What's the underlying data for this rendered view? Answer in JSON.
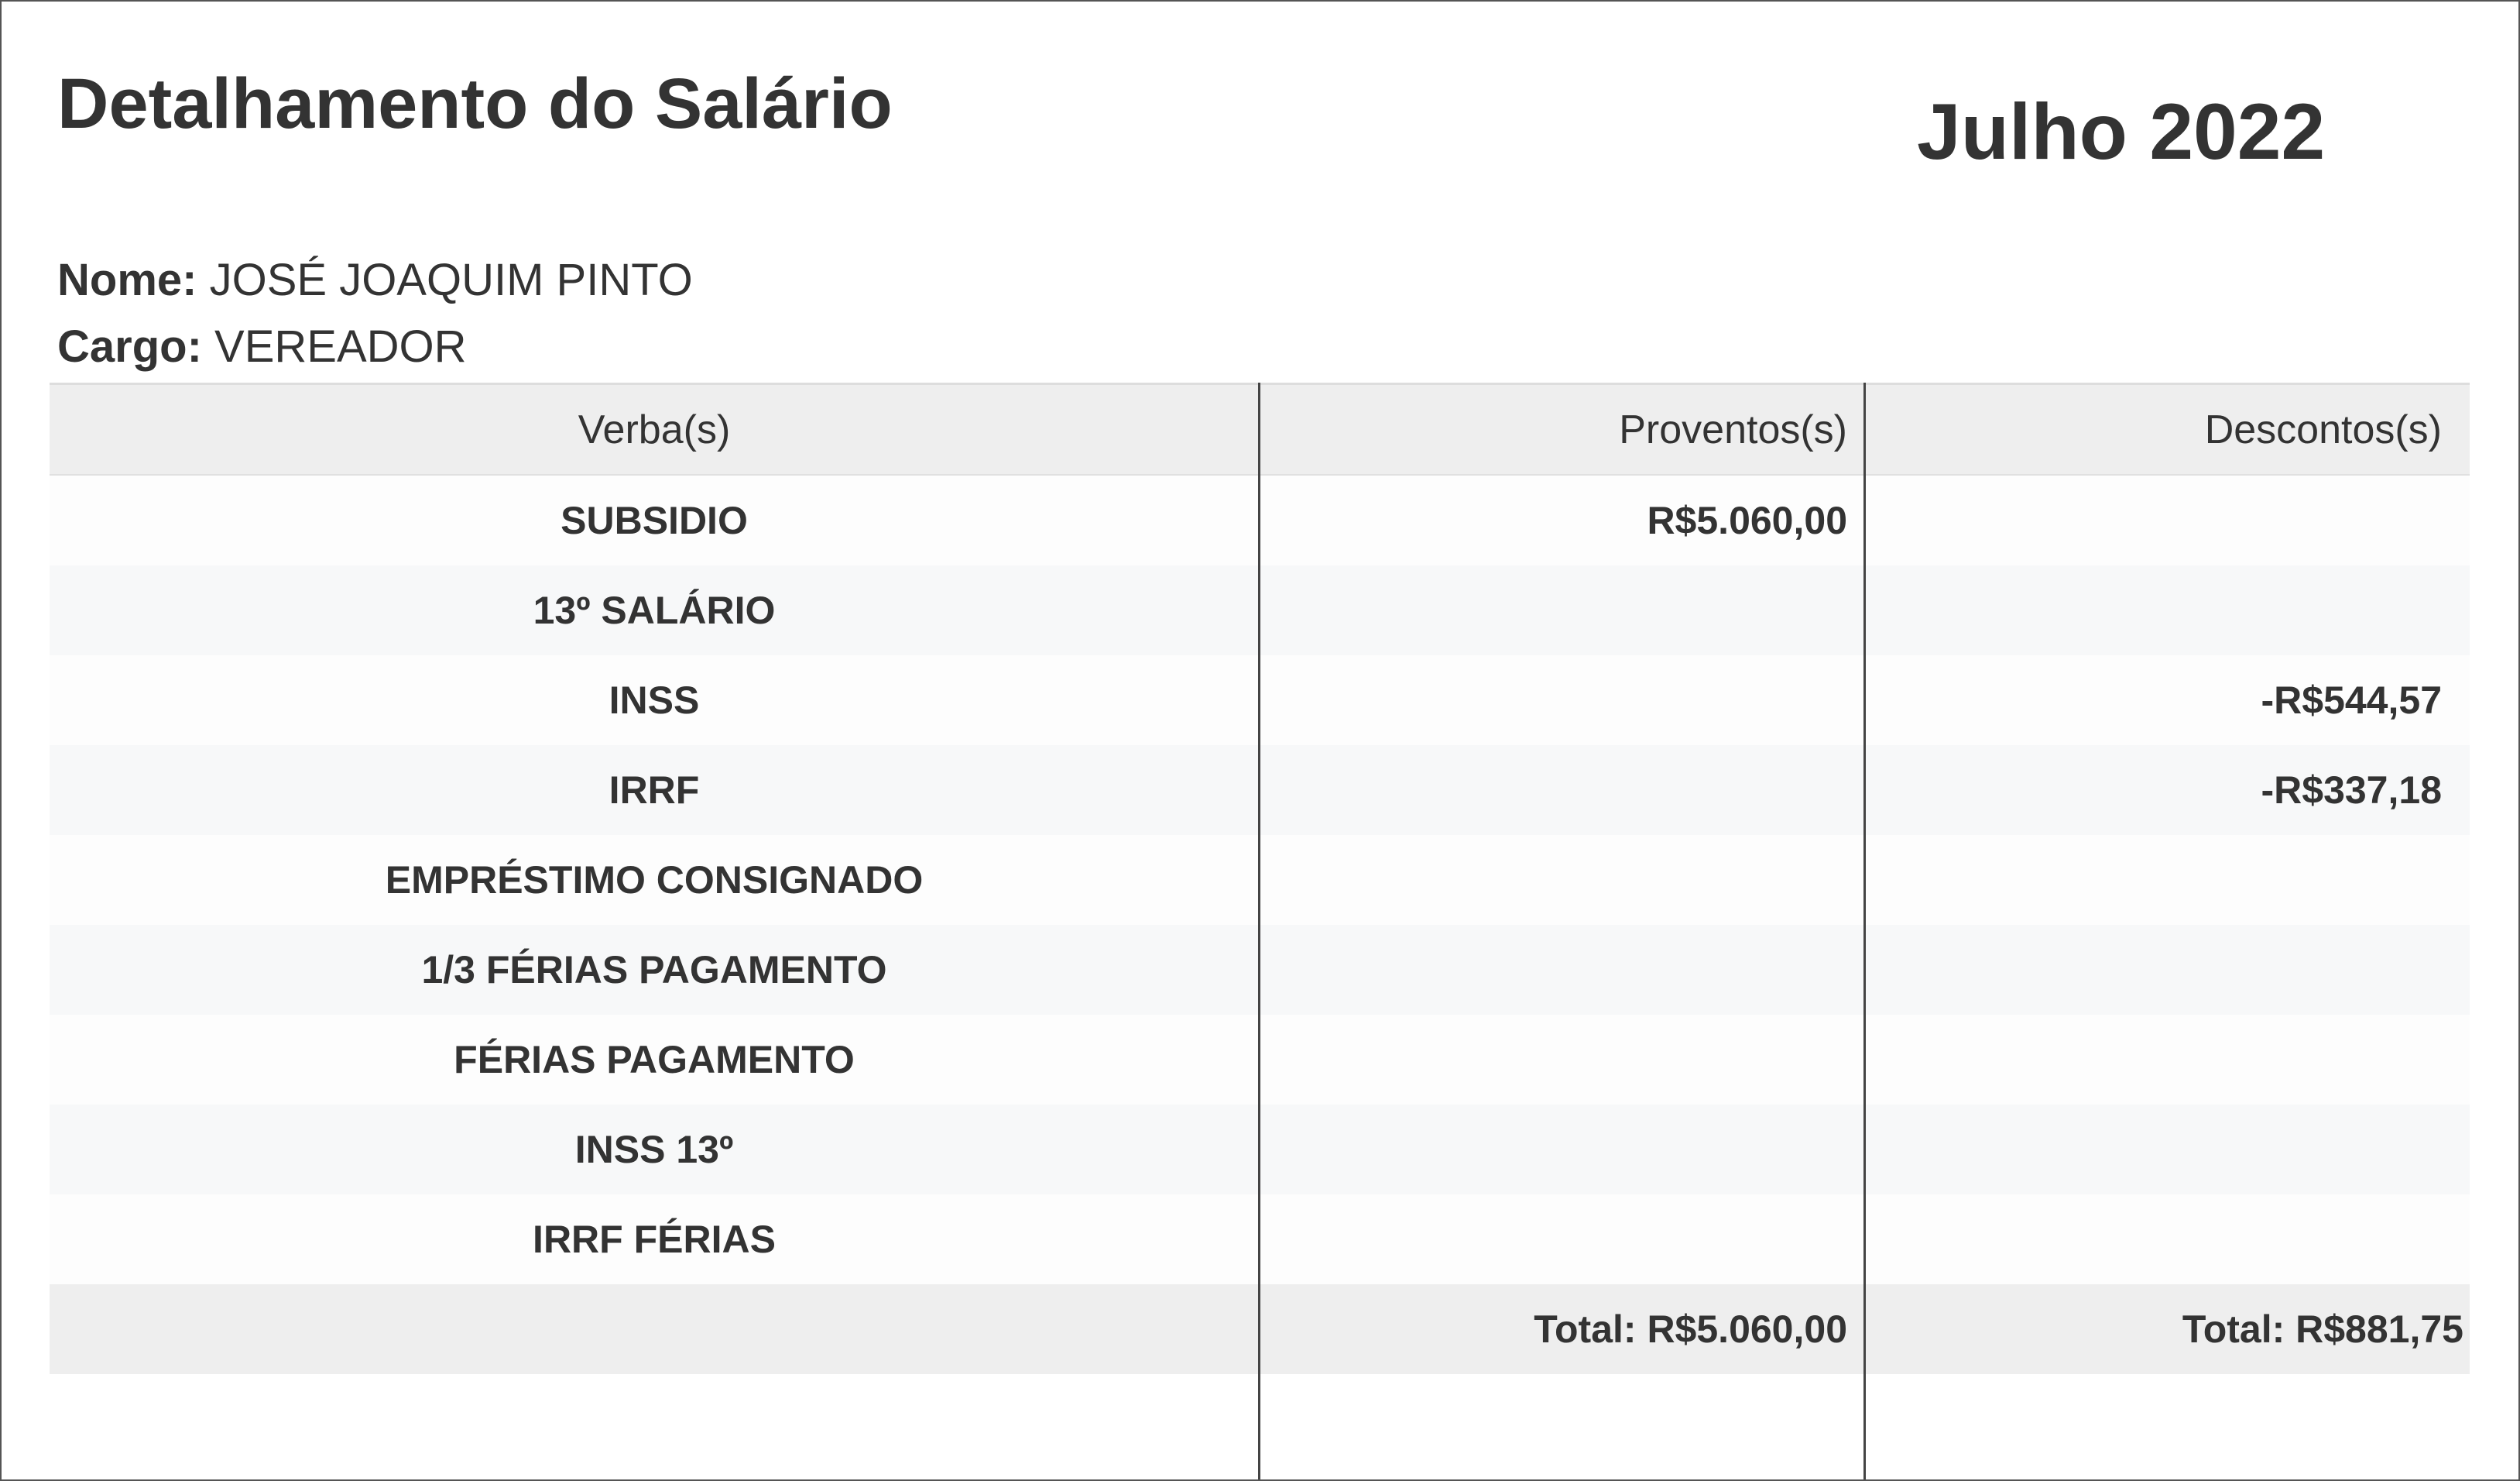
{
  "header": {
    "title": "Detalhamento do Salário",
    "period": "Julho 2022"
  },
  "employee": {
    "name_label": "Nome:",
    "name": "JOSÉ JOAQUIM PINTO",
    "role_label": "Cargo:",
    "role": "VEREADOR"
  },
  "table": {
    "columns": [
      "Verba(s)",
      "Proventos(s)",
      "Descontos(s)"
    ],
    "rows": [
      {
        "verba": "SUBSIDIO",
        "proventos": "R$5.060,00",
        "descontos": ""
      },
      {
        "verba": "13º SALÁRIO",
        "proventos": "",
        "descontos": ""
      },
      {
        "verba": "INSS",
        "proventos": "",
        "descontos": "-R$544,57"
      },
      {
        "verba": "IRRF",
        "proventos": "",
        "descontos": "-R$337,18"
      },
      {
        "verba": "EMPRÉSTIMO CONSIGNADO",
        "proventos": "",
        "descontos": ""
      },
      {
        "verba": "1/3 FÉRIAS PAGAMENTO",
        "proventos": "",
        "descontos": ""
      },
      {
        "verba": "FÉRIAS PAGAMENTO",
        "proventos": "",
        "descontos": ""
      },
      {
        "verba": "INSS 13º",
        "proventos": "",
        "descontos": ""
      },
      {
        "verba": "IRRF FÉRIAS",
        "proventos": "",
        "descontos": ""
      }
    ],
    "total_proventos": "Total: R$5.060,00",
    "total_descontos": "Total: R$881,75"
  }
}
